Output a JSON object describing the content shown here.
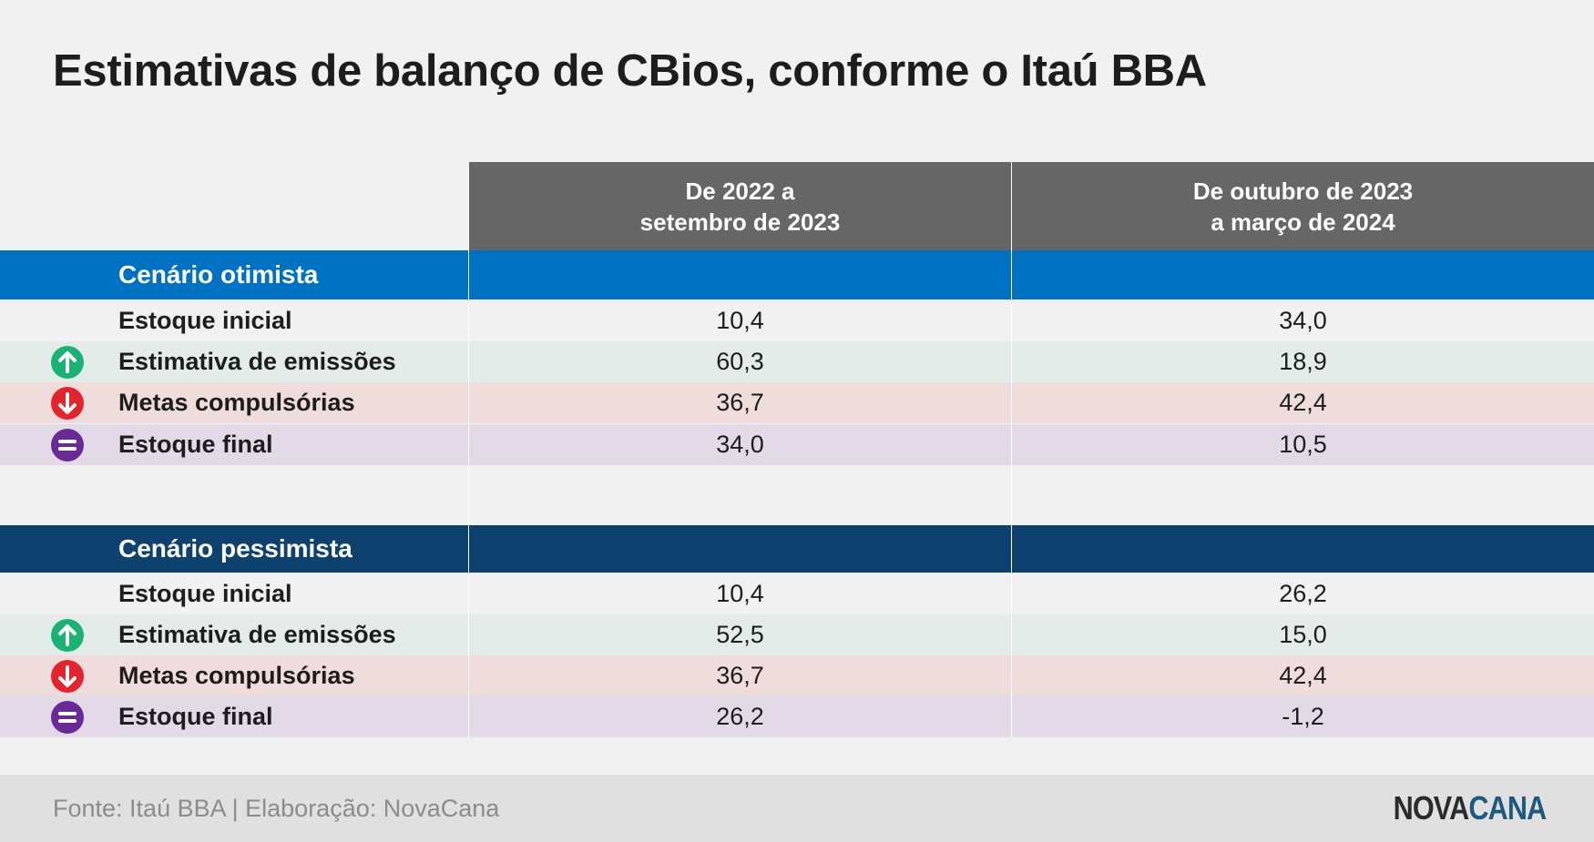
{
  "title": "Estimativas de balanço de CBios, conforme o Itaú BBA",
  "columns": [
    {
      "line1": "De 2022 a",
      "line2": "setembro de 2023"
    },
    {
      "line1": "De outubro de 2023",
      "line2": "a março de 2024"
    }
  ],
  "chart_data": {
    "type": "table",
    "title": "Estimativas de balanço de CBios, conforme o Itaú BBA",
    "columns": [
      "De 2022 a setembro de 2023",
      "De outubro de 2023 a março de 2024"
    ],
    "scenarios": [
      {
        "name": "Cenário otimista",
        "rows": [
          {
            "label": "Estoque inicial",
            "icon": "",
            "values": [
              "10,4",
              "34,0"
            ]
          },
          {
            "label": "Estimativa de emissões",
            "icon": "arrow-up-icon",
            "values": [
              "60,3",
              "18,9"
            ]
          },
          {
            "label": "Metas compulsórias",
            "icon": "arrow-down-icon",
            "values": [
              "36,7",
              "42,4"
            ]
          },
          {
            "label": "Estoque final",
            "icon": "equals-icon",
            "values": [
              "34,0",
              "10,5"
            ]
          }
        ]
      },
      {
        "name": "Cenário pessimista",
        "rows": [
          {
            "label": "Estoque inicial",
            "icon": "",
            "values": [
              "10,4",
              "26,2"
            ]
          },
          {
            "label": "Estimativa de emissões",
            "icon": "arrow-up-icon",
            "values": [
              "52,5",
              "15,0"
            ]
          },
          {
            "label": "Metas compulsórias",
            "icon": "arrow-down-icon",
            "values": [
              "36,7",
              "42,4"
            ]
          },
          {
            "label": "Estoque final",
            "icon": "equals-icon",
            "values": [
              "26,2",
              "-1,2"
            ]
          }
        ]
      }
    ]
  },
  "footer": {
    "source": "Fonte: Itaú BBA | Elaboração: NovaCana",
    "logo_part1": "NOVA",
    "logo_part2": "CANA"
  },
  "colors": {
    "background": "#f1f1f1",
    "header": "#666666",
    "optimistic_band": "#0070c0",
    "pessimistic_band": "#0d416e",
    "row_emissions": "#e4ecea",
    "row_targets": "#f1dcdc",
    "row_final": "#e2dbe7",
    "icon_up": "#1eb176",
    "icon_down": "#e3232d",
    "icon_equals": "#6a2a96",
    "logo_dark": "#2b2b2b",
    "logo_accent": "#1e5a80"
  }
}
